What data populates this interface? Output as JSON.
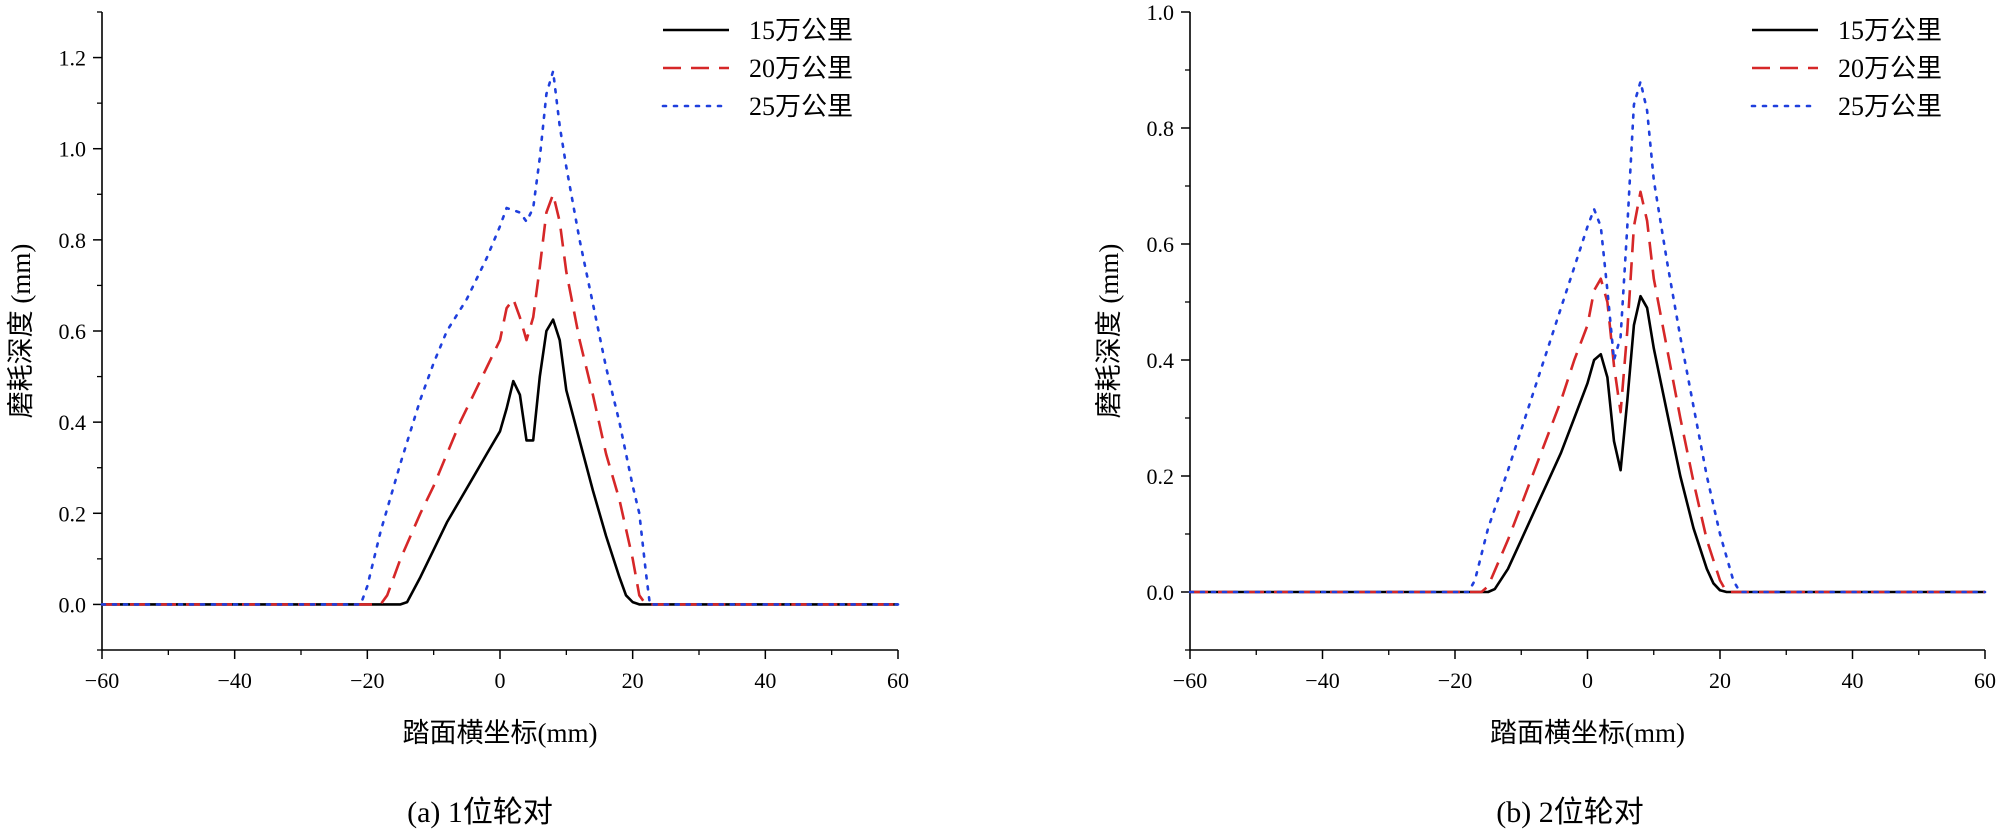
{
  "chart_data": [
    {
      "type": "line",
      "caption": "(a) 1位轮对",
      "xlabel": "踏面横坐标(mm)",
      "ylabel": "磨耗深度 (mm)",
      "xlim": [
        -60,
        60
      ],
      "ylim": [
        -0.1,
        1.3
      ],
      "xticks": [
        -60,
        -40,
        -20,
        0,
        20,
        40,
        60
      ],
      "xtick_labels": [
        "−60",
        "−40",
        "−20",
        "0",
        "20",
        "40",
        "60"
      ],
      "yticks": [
        0.0,
        0.2,
        0.4,
        0.6,
        0.8,
        1.0,
        1.2
      ],
      "ytick_labels": [
        "0.0",
        "0.2",
        "0.4",
        "0.6",
        "0.8",
        "1.0",
        "1.2"
      ],
      "legend_position": "top-right",
      "series": [
        {
          "name": "15万公里",
          "color": "#000000",
          "dash": "solid",
          "x": [
            -60,
            -15,
            -14,
            -12,
            -10,
            -8,
            -6,
            -4,
            -2,
            0,
            1,
            2,
            3,
            4,
            5,
            6,
            7,
            8,
            9,
            10,
            12,
            14,
            16,
            18,
            19,
            20,
            21,
            22,
            60
          ],
          "y": [
            0,
            0,
            0.005,
            0.06,
            0.12,
            0.18,
            0.23,
            0.28,
            0.33,
            0.38,
            0.43,
            0.49,
            0.46,
            0.36,
            0.36,
            0.5,
            0.6,
            0.625,
            0.58,
            0.47,
            0.36,
            0.25,
            0.15,
            0.06,
            0.02,
            0.005,
            0,
            0,
            0
          ]
        },
        {
          "name": "20万公里",
          "color": "#d62728",
          "dash": "dashed",
          "x": [
            -60,
            -18,
            -17,
            -15,
            -12,
            -10,
            -8,
            -6,
            -4,
            -2,
            0,
            1,
            2,
            3,
            4,
            5,
            6,
            7,
            8,
            9,
            10,
            12,
            14,
            16,
            18,
            20,
            21,
            22,
            60
          ],
          "y": [
            0,
            0,
            0.02,
            0.1,
            0.2,
            0.26,
            0.33,
            0.4,
            0.46,
            0.52,
            0.58,
            0.65,
            0.67,
            0.63,
            0.58,
            0.63,
            0.74,
            0.86,
            0.9,
            0.84,
            0.73,
            0.58,
            0.46,
            0.33,
            0.23,
            0.1,
            0.02,
            0,
            0
          ]
        },
        {
          "name": "25万公里",
          "color": "#1f3fdd",
          "dash": "dotted",
          "x": [
            -60,
            -21,
            -20,
            -18,
            -15,
            -12,
            -10,
            -8,
            -5,
            -2,
            0,
            1,
            3,
            4,
            5,
            6,
            7,
            8,
            9,
            10,
            12,
            14,
            16,
            18,
            20,
            21,
            22,
            22.6,
            60
          ],
          "y": [
            0,
            0,
            0.04,
            0.16,
            0.31,
            0.45,
            0.53,
            0.6,
            0.67,
            0.76,
            0.83,
            0.87,
            0.86,
            0.84,
            0.87,
            0.98,
            1.12,
            1.17,
            1.05,
            0.96,
            0.8,
            0.66,
            0.52,
            0.4,
            0.26,
            0.2,
            0.07,
            0,
            0
          ]
        }
      ]
    },
    {
      "type": "line",
      "caption": "(b) 2位轮对",
      "xlabel": "踏面横坐标(mm)",
      "ylabel": "磨耗深度 (mm)",
      "xlim": [
        -60,
        60
      ],
      "ylim": [
        -0.1,
        1.0
      ],
      "xticks": [
        -60,
        -40,
        -20,
        0,
        20,
        40,
        60
      ],
      "xtick_labels": [
        "−60",
        "−40",
        "−20",
        "0",
        "20",
        "40",
        "60"
      ],
      "yticks": [
        0.0,
        0.2,
        0.4,
        0.6,
        0.8,
        1.0
      ],
      "ytick_labels": [
        "0.0",
        "0.2",
        "0.4",
        "0.6",
        "0.8",
        "1.0"
      ],
      "legend_position": "top-right",
      "series": [
        {
          "name": "15万公里",
          "color": "#000000",
          "dash": "solid",
          "x": [
            -60,
            -15,
            -14,
            -12,
            -10,
            -8,
            -6,
            -4,
            -2,
            0,
            1,
            2,
            3,
            4,
            5,
            6,
            7,
            8,
            9,
            10,
            12,
            14,
            16,
            18,
            19,
            20,
            21,
            60
          ],
          "y": [
            0,
            0,
            0.005,
            0.04,
            0.09,
            0.14,
            0.19,
            0.24,
            0.3,
            0.36,
            0.4,
            0.41,
            0.37,
            0.26,
            0.21,
            0.33,
            0.46,
            0.51,
            0.49,
            0.42,
            0.31,
            0.2,
            0.11,
            0.04,
            0.015,
            0.003,
            0,
            0
          ]
        },
        {
          "name": "20万公里",
          "color": "#d62728",
          "dash": "dashed",
          "x": [
            -60,
            -16,
            -15,
            -12,
            -10,
            -8,
            -6,
            -4,
            -2,
            0,
            1,
            2,
            3,
            4,
            5,
            6,
            7,
            8,
            9,
            10,
            12,
            14,
            16,
            18,
            20,
            21,
            22,
            60
          ],
          "y": [
            0,
            0,
            0.01,
            0.09,
            0.15,
            0.21,
            0.27,
            0.33,
            0.4,
            0.46,
            0.52,
            0.54,
            0.5,
            0.39,
            0.31,
            0.45,
            0.63,
            0.69,
            0.64,
            0.54,
            0.42,
            0.3,
            0.19,
            0.09,
            0.02,
            0,
            0,
            0
          ]
        },
        {
          "name": "25万公里",
          "color": "#1f3fdd",
          "dash": "dotted",
          "x": [
            -60,
            -18,
            -17,
            -15,
            -12,
            -10,
            -8,
            -6,
            -4,
            -2,
            0,
            1,
            2,
            3,
            4,
            5,
            6,
            7,
            8,
            9,
            10,
            12,
            14,
            16,
            18,
            20,
            22,
            23,
            60
          ],
          "y": [
            0,
            0,
            0.02,
            0.11,
            0.21,
            0.28,
            0.35,
            0.42,
            0.49,
            0.56,
            0.63,
            0.66,
            0.63,
            0.52,
            0.4,
            0.44,
            0.63,
            0.84,
            0.88,
            0.83,
            0.71,
            0.57,
            0.44,
            0.32,
            0.2,
            0.1,
            0.02,
            0,
            0
          ]
        }
      ]
    }
  ]
}
